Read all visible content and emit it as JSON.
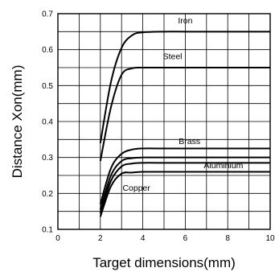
{
  "chart_data": {
    "type": "line",
    "title": "",
    "xlabel": "Target dimensions(mm)",
    "ylabel": "Distance Xon(mm)",
    "xlim": [
      0,
      10
    ],
    "ylim": [
      0.1,
      0.7
    ],
    "x_ticks": [
      0,
      2,
      4,
      6,
      8,
      10
    ],
    "x_tick_labels": [
      "0",
      "2",
      "4",
      "6",
      "8",
      "10"
    ],
    "y_ticks": [
      0.1,
      0.2,
      0.3,
      0.4,
      0.5,
      0.6,
      0.7
    ],
    "y_tick_labels": [
      "0.1",
      "0.2",
      "0.3",
      "0.4",
      "0.5",
      "0.6",
      "0.7"
    ],
    "grid": true,
    "legend": "none",
    "series": [
      {
        "name": "Iron",
        "x": [
          2,
          2.5,
          3,
          3.5,
          4,
          5,
          6,
          8,
          10
        ],
        "y": [
          0.34,
          0.51,
          0.605,
          0.64,
          0.648,
          0.65,
          0.65,
          0.65,
          0.65
        ]
      },
      {
        "name": "Steel",
        "x": [
          2,
          2.5,
          3,
          3.5,
          4,
          5,
          6,
          8,
          10
        ],
        "y": [
          0.29,
          0.44,
          0.53,
          0.548,
          0.55,
          0.55,
          0.55,
          0.55,
          0.55
        ]
      },
      {
        "name": "Brass",
        "x": [
          2,
          2.5,
          3,
          3.5,
          4,
          5,
          6,
          8,
          10
        ],
        "y": [
          0.17,
          0.27,
          0.31,
          0.322,
          0.325,
          0.325,
          0.325,
          0.325,
          0.325
        ]
      },
      {
        "name": "",
        "x": [
          2,
          2.5,
          3,
          3.5,
          4,
          5,
          6,
          8,
          10
        ],
        "y": [
          0.155,
          0.25,
          0.29,
          0.298,
          0.3,
          0.3,
          0.3,
          0.3,
          0.3
        ]
      },
      {
        "name": "Aluminium",
        "x": [
          2,
          2.5,
          3,
          3.5,
          4,
          5,
          6,
          8,
          10
        ],
        "y": [
          0.145,
          0.235,
          0.275,
          0.283,
          0.285,
          0.285,
          0.285,
          0.285,
          0.285
        ]
      },
      {
        "name": "Copper",
        "x": [
          2,
          2.5,
          3,
          3.5,
          4,
          5,
          6,
          8,
          10
        ],
        "y": [
          0.135,
          0.22,
          0.255,
          0.258,
          0.26,
          0.26,
          0.26,
          0.26,
          0.26
        ]
      }
    ],
    "annotations": [
      {
        "text": "Iron",
        "x": 6.0,
        "y": 0.673
      },
      {
        "text": "Steel",
        "x": 5.4,
        "y": 0.573
      },
      {
        "text": "Brass",
        "x": 6.2,
        "y": 0.337
      },
      {
        "text": "Aluminium",
        "x": 7.8,
        "y": 0.27
      },
      {
        "text": "Copper",
        "x": 3.7,
        "y": 0.207
      }
    ]
  }
}
